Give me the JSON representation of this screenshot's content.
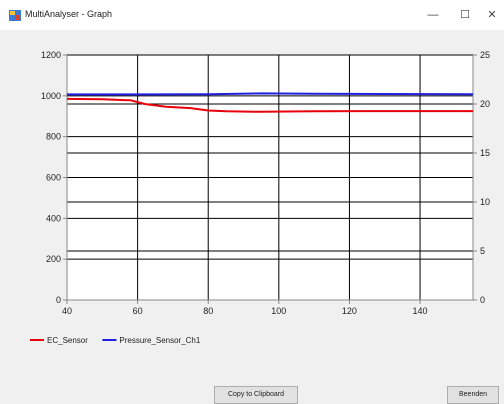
{
  "window": {
    "title": "MultiAnalyser - Graph",
    "minimize_glyph": "—",
    "maximize_glyph": "☐",
    "close_glyph": "✕"
  },
  "buttons": {
    "copy_label": "Copy to Clipboard",
    "close_label": "Beenden"
  },
  "chart_data": {
    "type": "line",
    "x_ticks": [
      40,
      60,
      80,
      100,
      120,
      140
    ],
    "xlim": [
      40,
      155
    ],
    "y_ticks": [
      0,
      200,
      400,
      600,
      800,
      1000,
      1200
    ],
    "ylim": [
      0,
      1200
    ],
    "y2_ticks": [
      0,
      5,
      10,
      15,
      20,
      25
    ],
    "y2lim": [
      0,
      25
    ],
    "grid": true,
    "legend_position": "bottom-left",
    "series": [
      {
        "name": "EC_Sensor",
        "color": "#e8000b",
        "x": [
          40,
          50,
          58,
          62,
          68,
          75,
          80,
          85,
          95,
          110,
          125,
          140,
          155
        ],
        "y": [
          985,
          983,
          978,
          960,
          947,
          940,
          928,
          924,
          922,
          924,
          925,
          925,
          925
        ]
      },
      {
        "name": "Pressure_Sensor_Ch1",
        "color": "#2020e0",
        "x": [
          40,
          60,
          80,
          95,
          110,
          130,
          155
        ],
        "y": [
          1007,
          1007,
          1008,
          1012,
          1010,
          1009,
          1008
        ]
      }
    ],
    "reference_lines": [
      {
        "axis": "y2",
        "value": 5,
        "color": "#000000"
      },
      {
        "axis": "y2",
        "value": 10,
        "color": "#000000"
      },
      {
        "axis": "y2",
        "value": 15,
        "color": "#000000"
      },
      {
        "axis": "y2",
        "value": 20,
        "color": "#000000"
      }
    ]
  }
}
